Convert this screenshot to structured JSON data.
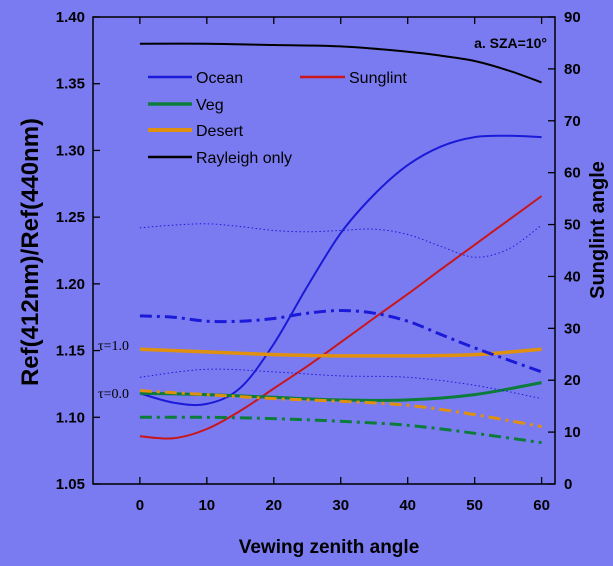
{
  "chart_data": {
    "type": "line",
    "title": "a. SZA=10°",
    "xlabel": "Vewing zenith angle",
    "ylabel_left": "Ref(412nm)/Ref(440nm)",
    "ylabel_right": "Sunglint angle",
    "xlim": [
      -7,
      62
    ],
    "ylim_left": [
      1.05,
      1.4
    ],
    "ylim_right": [
      0,
      90
    ],
    "x_ticks": [
      0,
      10,
      20,
      30,
      40,
      50,
      60
    ],
    "y_ticks_left": [
      "1.05",
      "1.10",
      "1.15",
      "1.20",
      "1.25",
      "1.30",
      "1.35",
      "1.40"
    ],
    "y_ticks_right": [
      "0",
      "10",
      "20",
      "30",
      "40",
      "50",
      "60",
      "70",
      "80",
      "90"
    ],
    "grid": false,
    "legend": [
      "Ocean",
      "Sunglint",
      "Veg",
      "Desert",
      "Rayleigh only"
    ],
    "legend_placement": "top-left",
    "annotations": [
      "τ=1.0",
      "τ=0.0"
    ],
    "colors": {
      "background": "#7b7bf1",
      "ocean": "#1a1ad8",
      "sunglint": "#c8161b",
      "veg": "#0b7c3a",
      "desert": "#e0900f",
      "rayleigh": "#000000"
    },
    "series": [
      {
        "name": "Rayleigh only",
        "axis": "left",
        "style": "solid",
        "x": [
          0,
          10,
          20,
          30,
          40,
          45,
          50,
          55,
          60
        ],
        "y": [
          1.38,
          1.38,
          1.379,
          1.378,
          1.374,
          1.371,
          1.367,
          1.36,
          1.351
        ]
      },
      {
        "name": "Ocean",
        "axis": "left",
        "style": "solid",
        "x": [
          0,
          5,
          10,
          15,
          20,
          25,
          30,
          35,
          40,
          45,
          50,
          55,
          60
        ],
        "y": [
          1.118,
          1.111,
          1.11,
          1.122,
          1.155,
          1.198,
          1.238,
          1.267,
          1.289,
          1.303,
          1.31,
          1.311,
          1.31
        ]
      },
      {
        "name": "Sunglint",
        "axis": "right",
        "style": "solid",
        "x": [
          0,
          5,
          10,
          15,
          20,
          25,
          30,
          35,
          40,
          45,
          50,
          55,
          60
        ],
        "y": [
          9.2,
          8.8,
          10.6,
          14.1,
          18.4,
          22.7,
          27.3,
          32.0,
          36.6,
          41.4,
          46.1,
          50.8,
          55.5
        ]
      },
      {
        "name": "Desert",
        "axis": "left",
        "style": "solid",
        "x": [
          0,
          10,
          20,
          30,
          40,
          50,
          60
        ],
        "y": [
          1.151,
          1.149,
          1.147,
          1.146,
          1.146,
          1.147,
          1.151
        ]
      },
      {
        "name": "Veg",
        "axis": "left",
        "style": "solid",
        "x": [
          0,
          10,
          20,
          30,
          40,
          50,
          60
        ],
        "y": [
          1.118,
          1.117,
          1.115,
          1.113,
          1.113,
          1.117,
          1.126
        ]
      },
      {
        "name": "Ocean τ=1.0",
        "axis": "left",
        "style": "dashdot",
        "color": "ocean",
        "x": [
          0,
          5,
          10,
          15,
          20,
          25,
          30,
          35,
          40,
          45,
          50,
          55,
          60
        ],
        "y": [
          1.176,
          1.175,
          1.172,
          1.172,
          1.174,
          1.178,
          1.18,
          1.178,
          1.172,
          1.162,
          1.152,
          1.143,
          1.134
        ]
      },
      {
        "name": "Desert τ=0.0",
        "axis": "left",
        "style": "dashdot",
        "color": "desert",
        "x": [
          0,
          10,
          20,
          30,
          40,
          50,
          60
        ],
        "y": [
          1.12,
          1.117,
          1.114,
          1.112,
          1.109,
          1.102,
          1.093
        ]
      },
      {
        "name": "Veg τ=0.0",
        "axis": "left",
        "style": "dashdot",
        "color": "veg",
        "x": [
          0,
          10,
          20,
          30,
          40,
          50,
          60
        ],
        "y": [
          1.1,
          1.1,
          1.099,
          1.097,
          1.094,
          1.088,
          1.081
        ]
      },
      {
        "name": "Ocean dotted upper",
        "axis": "left",
        "style": "dotted",
        "color": "ocean",
        "x": [
          0,
          5,
          10,
          15,
          20,
          25,
          30,
          35,
          40,
          45,
          50,
          55,
          60
        ],
        "y": [
          1.242,
          1.244,
          1.245,
          1.243,
          1.24,
          1.239,
          1.24,
          1.241,
          1.237,
          1.228,
          1.22,
          1.226,
          1.244
        ]
      },
      {
        "name": "Ocean dotted lower",
        "axis": "left",
        "style": "dotted",
        "color": "ocean",
        "x": [
          0,
          10,
          20,
          30,
          40,
          50,
          60
        ],
        "y": [
          1.13,
          1.136,
          1.134,
          1.131,
          1.13,
          1.124,
          1.114
        ]
      }
    ]
  }
}
